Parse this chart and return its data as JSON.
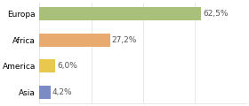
{
  "categories": [
    "Asia",
    "America",
    "Africa",
    "Europa"
  ],
  "values": [
    4.2,
    6.0,
    27.2,
    62.5
  ],
  "labels": [
    "4,2%",
    "6,0%",
    "27,2%",
    "62,5%"
  ],
  "bar_colors": [
    "#7b8cc4",
    "#e8c94e",
    "#e8aa6e",
    "#a8c07a"
  ],
  "background_color": "#ffffff",
  "xlim": [
    0,
    80
  ],
  "bar_height": 0.5,
  "label_fontsize": 6.5,
  "tick_fontsize": 6.5,
  "grid_color": "#dddddd",
  "label_color": "#555555"
}
